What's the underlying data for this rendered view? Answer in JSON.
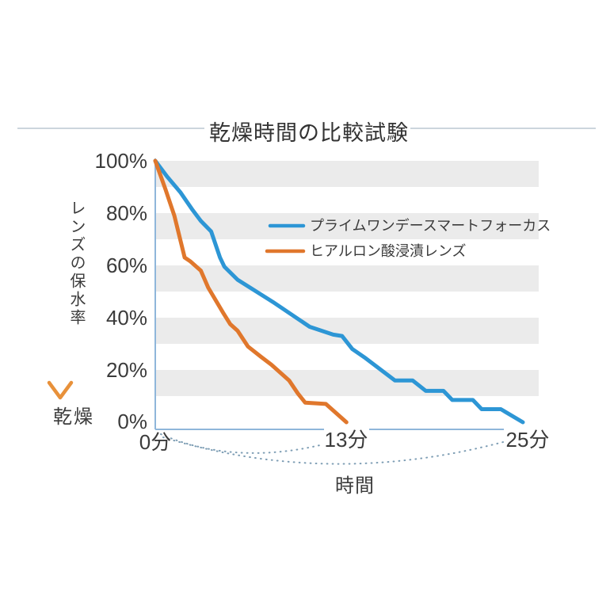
{
  "chart_data": {
    "type": "line",
    "title": "乾燥時間の比較試験",
    "xlabel": "時間",
    "ylabel": "レンズの保水率",
    "arrow_end_label": "乾燥",
    "x_unit": "分",
    "xlim": [
      0,
      25
    ],
    "ylim": [
      0,
      100
    ],
    "x_tick_values": [
      0,
      13,
      25
    ],
    "x_tick_labels": [
      "0分",
      "13分",
      "25分"
    ],
    "y_tick_values": [
      100,
      80,
      60,
      40,
      20,
      0
    ],
    "y_tick_labels": [
      "100%",
      "80%",
      "60%",
      "40%",
      "20%",
      "0%"
    ],
    "grid": "alternating horizontal 10% bands",
    "legend_position": "inside upper right",
    "series": [
      {
        "name": "プライムワンデースマートフォーカス",
        "color": "#2d96d5",
        "points": [
          [
            0,
            100
          ],
          [
            0.8,
            94
          ],
          [
            1.7,
            88
          ],
          [
            2.5,
            81.5
          ],
          [
            3.1,
            77
          ],
          [
            3.8,
            73
          ],
          [
            4.4,
            63
          ],
          [
            4.7,
            59.5
          ],
          [
            5.6,
            54.5
          ],
          [
            8,
            46
          ],
          [
            10.5,
            36.5
          ],
          [
            12.1,
            33.5
          ],
          [
            12.7,
            33
          ],
          [
            13.4,
            28
          ],
          [
            14.3,
            24.5
          ],
          [
            16.3,
            16
          ],
          [
            17.5,
            16
          ],
          [
            18.4,
            12
          ],
          [
            19.6,
            12
          ],
          [
            20.2,
            8.5
          ],
          [
            21.6,
            8.5
          ],
          [
            22.2,
            5
          ],
          [
            23.5,
            5
          ],
          [
            25,
            0
          ]
        ]
      },
      {
        "name": "ヒアルロン酸浸漬レンズ",
        "color": "#e0772c",
        "points": [
          [
            0,
            100
          ],
          [
            0.7,
            89
          ],
          [
            1.3,
            79
          ],
          [
            2,
            63
          ],
          [
            2.4,
            61.5
          ],
          [
            3.1,
            58
          ],
          [
            3.6,
            51.5
          ],
          [
            4.6,
            42
          ],
          [
            5.1,
            37.5
          ],
          [
            5.6,
            35
          ],
          [
            6.3,
            29
          ],
          [
            7.2,
            25
          ],
          [
            7.9,
            22
          ],
          [
            9.1,
            16
          ],
          [
            9.7,
            11
          ],
          [
            10.2,
            7.5
          ],
          [
            11.6,
            7
          ],
          [
            13,
            0
          ]
        ]
      }
    ]
  },
  "colors": {
    "blue": "#2d96d5",
    "orange": "#e0772c",
    "stripe": "#ebebeb",
    "axis": "#8fb6da",
    "dotted": "#7d9db4",
    "title_line": "#ccd5dd",
    "arrow_top": "#3f9ed8",
    "arrow_bottom": "#e8913a",
    "text": "#3b3b3b"
  }
}
